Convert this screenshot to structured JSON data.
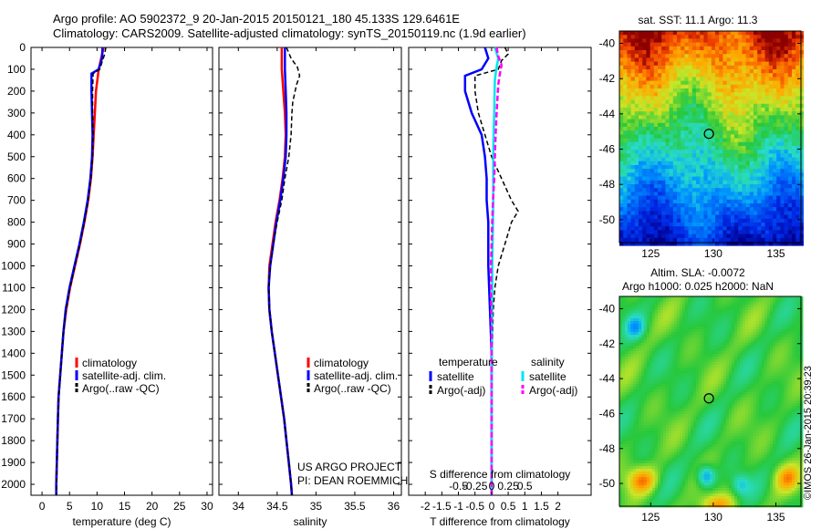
{
  "header": {
    "line1": "Argo profile: AO 5902372_9 20-Jan-2015 20150121_180 45.133S 129.6461E",
    "line2": "Climatology: CARS2009. Satellite-adjusted climatology: synTS_20150119.nc (1.9d earlier)"
  },
  "credits": {
    "project": "US ARGO PROJECT",
    "pi": "PI: DEAN ROEMMICH"
  },
  "stamp": "©IMOS 26-Jan-2015 20:39:23",
  "colors": {
    "clim": "#ff0000",
    "sat": "#0000ff",
    "argo": "#000000",
    "sal_sat": "#00e5ee",
    "sal_argo": "#ff00ff"
  },
  "chart_data": [
    {
      "type": "line",
      "xlabel": "temperature (deg C)",
      "ylabel": "",
      "xlim": [
        -2,
        31
      ],
      "ylim": [
        2050,
        0
      ],
      "xticks": [
        0,
        5,
        10,
        15,
        20,
        25,
        30
      ],
      "yticks": [
        0,
        100,
        200,
        300,
        400,
        500,
        600,
        700,
        800,
        900,
        1000,
        1100,
        1200,
        1300,
        1400,
        1500,
        1600,
        1700,
        1800,
        1900,
        2000
      ],
      "legend": [
        "climatology",
        "satellite-adj. clim.",
        "Argo(..raw -QC)"
      ],
      "series": [
        {
          "name": "climatology",
          "y": [
            0,
            100,
            200,
            300,
            400,
            500,
            600,
            700,
            800,
            900,
            1000,
            1100,
            1200,
            1300,
            1400,
            1500,
            1600,
            1700,
            1800,
            1900,
            2000,
            2050
          ],
          "x": [
            11.2,
            10.3,
            9.8,
            9.6,
            9.4,
            9.2,
            8.9,
            8.4,
            7.7,
            6.9,
            6.0,
            5.1,
            4.4,
            3.9,
            3.6,
            3.3,
            3.0,
            2.9,
            2.8,
            2.7,
            2.6,
            2.6
          ]
        },
        {
          "name": "satellite-adj. clim.",
          "y": [
            0,
            50,
            100,
            120,
            200,
            300,
            400,
            500,
            600,
            700,
            800,
            900,
            1000,
            1100,
            1200,
            1300,
            1400,
            1500,
            1600,
            1700,
            1800,
            1900,
            2000,
            2050
          ],
          "x": [
            11.0,
            10.9,
            10.3,
            9.0,
            9.0,
            9.1,
            9.2,
            9.1,
            8.8,
            8.3,
            7.6,
            6.8,
            5.9,
            5.0,
            4.3,
            3.9,
            3.6,
            3.3,
            3.0,
            2.9,
            2.8,
            2.7,
            2.6,
            2.6
          ]
        },
        {
          "name": "Argo(..raw -QC)",
          "y": [
            0,
            30,
            60,
            100,
            120,
            200,
            300,
            400,
            500,
            600,
            700,
            800,
            900,
            1000,
            1100,
            1200,
            1300,
            1400,
            1500,
            1600,
            1700,
            1800,
            1900,
            2000,
            2050
          ],
          "x": [
            11.6,
            11.4,
            11.0,
            10.5,
            9.3,
            9.2,
            9.2,
            9.3,
            9.2,
            8.9,
            8.4,
            7.7,
            6.9,
            6.0,
            5.1,
            4.4,
            3.9,
            3.6,
            3.3,
            3.0,
            2.9,
            2.8,
            2.7,
            2.6,
            2.6
          ]
        }
      ]
    },
    {
      "type": "line",
      "xlabel": "salinity",
      "ylabel": "",
      "xlim": [
        33.75,
        36.1
      ],
      "ylim": [
        2050,
        0
      ],
      "xticks": [
        34,
        34.5,
        35,
        35.5,
        36
      ],
      "legend": [
        "climatology",
        "satellite-adj. clim.",
        "Argo(..raw -QC)"
      ],
      "series": [
        {
          "name": "climatology",
          "y": [
            0,
            100,
            200,
            300,
            400,
            500,
            600,
            700,
            800,
            900,
            1000,
            1100,
            1200,
            1300,
            1400,
            1500,
            1600,
            1700,
            1800,
            1900,
            2000,
            2050
          ],
          "x": [
            34.56,
            34.56,
            34.58,
            34.6,
            34.61,
            34.6,
            34.57,
            34.53,
            34.48,
            34.44,
            34.4,
            34.39,
            34.4,
            34.43,
            34.47,
            34.51,
            34.55,
            34.59,
            34.62,
            34.65,
            34.68,
            34.69
          ]
        },
        {
          "name": "satellite-adj. clim.",
          "y": [
            0,
            100,
            200,
            300,
            400,
            500,
            600,
            700,
            800,
            900,
            1000,
            1100,
            1200,
            1300,
            1400,
            1500,
            1600,
            1700,
            1800,
            1900,
            2000,
            2050
          ],
          "x": [
            34.6,
            34.6,
            34.61,
            34.62,
            34.62,
            34.61,
            34.58,
            34.54,
            34.49,
            34.45,
            34.41,
            34.39,
            34.4,
            34.43,
            34.47,
            34.51,
            34.55,
            34.59,
            34.62,
            34.65,
            34.68,
            34.69
          ]
        },
        {
          "name": "Argo(..raw -QC)",
          "y": [
            0,
            50,
            90,
            130,
            170,
            250,
            300,
            400,
            500,
            600,
            700,
            800,
            900,
            1000,
            1100,
            1200,
            1300,
            1400,
            1500,
            1600,
            1700,
            1800,
            1900,
            2000,
            2050
          ],
          "x": [
            34.62,
            34.68,
            34.76,
            34.79,
            34.75,
            34.7,
            34.69,
            34.68,
            34.65,
            34.6,
            34.56,
            34.5,
            34.45,
            34.41,
            34.39,
            34.4,
            34.43,
            34.47,
            34.51,
            34.55,
            34.59,
            34.62,
            34.65,
            34.68,
            34.69
          ]
        }
      ]
    },
    {
      "type": "line",
      "xlabel": "T difference from climatology",
      "title": "S difference from climatology",
      "ylabel": "",
      "xlim": [
        -2.5,
        3
      ],
      "ylim": [
        2050,
        0
      ],
      "xticks": [
        -2,
        -1.5,
        -1,
        -0.5,
        0,
        0.5,
        1,
        1.5,
        2
      ],
      "xtick_labels": [
        "-2",
        "-1.5",
        "-1",
        "-0.5",
        "0",
        "0.5",
        "1",
        "1.5",
        "2"
      ],
      "s_ticks": [
        -0.5,
        -0.25,
        0,
        0.25,
        0.5
      ],
      "s_tick_labels": [
        "-0.5",
        "-0.25",
        "0",
        "0.25",
        "0.5"
      ],
      "legend_groups": [
        "temperature",
        "salinity"
      ],
      "legend": [
        "satellite",
        "Argo(-adj)",
        "satellite",
        "Argo(-adj)"
      ],
      "series": [
        {
          "name": "satellite",
          "y": [
            0,
            50,
            100,
            130,
            200,
            300,
            400,
            500,
            600,
            700,
            800,
            900,
            1000,
            1200,
            1400,
            1600,
            1800,
            2050
          ],
          "x": [
            -0.2,
            -0.1,
            -0.3,
            -0.8,
            -0.8,
            -0.6,
            -0.3,
            -0.2,
            -0.15,
            -0.15,
            -0.1,
            -0.1,
            -0.1,
            -0.05,
            0,
            0,
            0,
            0
          ]
        },
        {
          "name": "Argo(-adj)",
          "y": [
            0,
            30,
            60,
            100,
            130,
            200,
            300,
            400,
            500,
            600,
            700,
            750,
            800,
            900,
            1000,
            1100,
            1200,
            1400,
            1600,
            1800,
            2050
          ],
          "x": [
            0.4,
            0.5,
            0.3,
            0.2,
            -0.5,
            -0.5,
            -0.4,
            -0.2,
            0,
            0.3,
            0.6,
            0.8,
            0.6,
            0.4,
            0.2,
            0.1,
            0.05,
            0.02,
            0,
            0,
            0
          ]
        },
        {
          "name": "satellite",
          "y": [
            0,
            50,
            100,
            150,
            200,
            300,
            400,
            500,
            600,
            700,
            800,
            900,
            1000,
            1100,
            1200,
            1400,
            1600,
            1800,
            2050
          ],
          "x": [
            0.1,
            0.2,
            0.14,
            0.1,
            0.09,
            0.08,
            0.06,
            0.05,
            0.05,
            0.05,
            0.04,
            0.03,
            0.02,
            0.02,
            0.01,
            0.01,
            0,
            0,
            0
          ]
        },
        {
          "name": "Argo(-adj)",
          "y": [
            0,
            40,
            80,
            120,
            170,
            220,
            300,
            400,
            500,
            600,
            700,
            800,
            900,
            1000,
            1100,
            1200,
            1300,
            1400,
            1600,
            1800,
            2050
          ],
          "x": [
            0.15,
            0.2,
            0.3,
            0.25,
            0.2,
            0.18,
            0.15,
            0.12,
            0.1,
            0.08,
            0.04,
            0.02,
            0.0,
            -0.02,
            -0.02,
            -0.01,
            0,
            0,
            0,
            0,
            0
          ]
        }
      ]
    },
    {
      "type": "heatmap",
      "title": "sat. SST: 11.1  Argo: 11.3",
      "xlim": [
        122.5,
        137
      ],
      "ylim": [
        -51.3,
        -39.3
      ],
      "xticks": [
        125,
        130,
        135
      ],
      "yticks": [
        -40,
        -42,
        -44,
        -46,
        -48,
        -50
      ],
      "marker": [
        129.65,
        -45.13
      ]
    },
    {
      "type": "heatmap",
      "title": "Altim. SLA: -0.0072",
      "subtitle": "Argo h1000: 0.025 h2000: NaN",
      "xlim": [
        122.5,
        137
      ],
      "ylim": [
        -51.3,
        -39.3
      ],
      "xticks": [
        125,
        130,
        135
      ],
      "yticks": [
        -40,
        -42,
        -44,
        -46,
        -48,
        -50
      ],
      "marker": [
        129.65,
        -45.13
      ]
    }
  ]
}
